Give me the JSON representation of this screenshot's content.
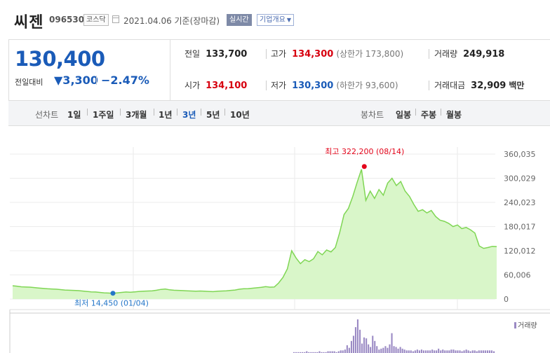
{
  "header": {
    "name": "씨젠",
    "code": "096530",
    "market": "코스닥",
    "date_text": "2021.04.06 기준(장마감)",
    "realtime_label": "실시간",
    "company_info_label": "기업개요"
  },
  "quote": {
    "price": "130,400",
    "change_label": "전일대비",
    "change_value": "▼3,300",
    "change_pct": "−2.47%",
    "prev_close_label": "전일",
    "prev_close": "133,700",
    "high_label": "고가",
    "high": "134,300",
    "upper_limit": "(상한가 173,800)",
    "volume_label": "거래량",
    "volume": "249,918",
    "open_label": "시가",
    "open": "134,100",
    "low_label": "저가",
    "low": "130,300",
    "lower_limit": "(하한가 93,600)",
    "amount_label": "거래대금",
    "amount": "32,909",
    "amount_unit": "백만"
  },
  "period_bar": {
    "line_title": "선차트",
    "line_items": [
      "1일",
      "1주일",
      "3개월",
      "1년",
      "3년",
      "5년",
      "10년"
    ],
    "active_line": "3년",
    "candle_title": "봉차트",
    "candle_items": [
      "일봉",
      "주봉",
      "월봉"
    ]
  },
  "chart_data": {
    "type": "area",
    "series": [
      {
        "values": [
          33000,
          32000,
          30500,
          30000,
          29500,
          28500,
          27500,
          26500,
          25500,
          25000,
          24500,
          23500,
          22500,
          22000,
          21500,
          21000,
          20000,
          19000,
          18000,
          17500,
          16500,
          15500,
          15000,
          14450,
          15500,
          16500,
          17500,
          17000,
          18000,
          19000,
          19500,
          20000,
          20500,
          22000,
          24000,
          25000,
          23000,
          22000,
          21500,
          21000,
          20500,
          20000,
          19500,
          20000,
          19500,
          19000,
          18500,
          19500,
          20000,
          20500,
          21500,
          22500,
          24500,
          25500,
          26000,
          27000,
          28000,
          29000,
          31000,
          29500,
          30000,
          40000,
          54000,
          75000,
          120000,
          102000,
          88000,
          98000,
          93000,
          100000,
          118000,
          110000,
          122000,
          117000,
          128000,
          165000,
          210000,
          225000,
          255000,
          290000,
          322200,
          245000,
          268000,
          250000,
          272000,
          258000,
          288000,
          300000,
          282000,
          292000,
          268000,
          255000,
          235000,
          218000,
          222000,
          214000,
          220000,
          205000,
          196000,
          193000,
          188000,
          180000,
          184000,
          175000,
          178000,
          172000,
          164000,
          132000,
          126000,
          128000,
          131000,
          130400
        ]
      }
    ],
    "y_ticks": [
      "360,035",
      "300,029",
      "240,023",
      "180,017",
      "120,012",
      "60,006",
      "0"
    ],
    "ylim": [
      0,
      360035
    ],
    "max_label": "최고 322,200 (08/14)",
    "min_label": "최저 14,450 (01/04)",
    "volume_label": "거래량",
    "volume_values": [
      1,
      1,
      1,
      1,
      1,
      1,
      2,
      1,
      1,
      1,
      1,
      1,
      2,
      1,
      1,
      1,
      2,
      2,
      2,
      2,
      1,
      2,
      3,
      3,
      4,
      9,
      6,
      14,
      20,
      30,
      39,
      27,
      11,
      18,
      17,
      10,
      7,
      20,
      14,
      8,
      4,
      5,
      6,
      8,
      6,
      10,
      23,
      8,
      7,
      5,
      7,
      5,
      4,
      3,
      3,
      3,
      2,
      3,
      4,
      3,
      4,
      3,
      3,
      3,
      3,
      4,
      3,
      3,
      5,
      3,
      4,
      3,
      3,
      3,
      4,
      4,
      3,
      3,
      3,
      2,
      3,
      4,
      3,
      2,
      3,
      3,
      2,
      3,
      3,
      3,
      3,
      3,
      3,
      3,
      2
    ],
    "grid": true,
    "line_color": "#7fd654",
    "fill_color": "#d9f6c9",
    "max_color": "#e3061b",
    "min_color": "#2476c8"
  }
}
